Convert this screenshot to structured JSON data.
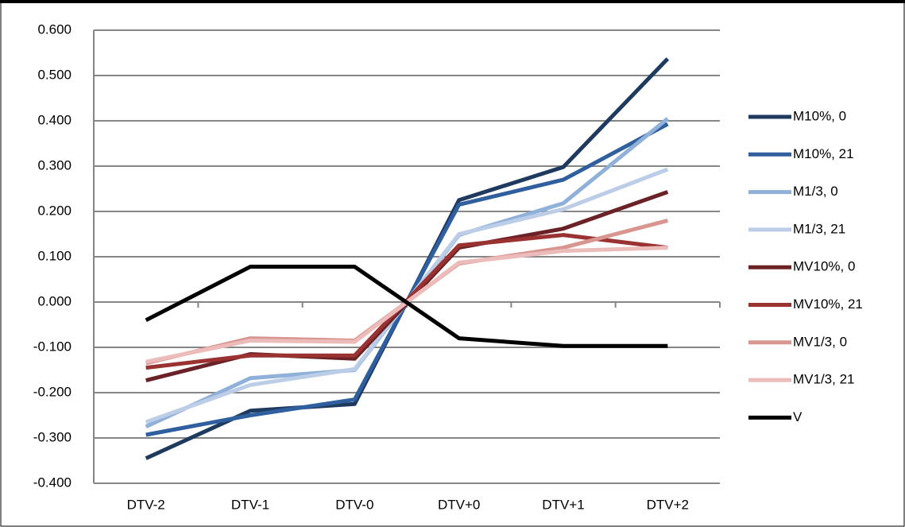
{
  "chart_data": {
    "type": "line",
    "categories": [
      "DTV-2",
      "DTV-1",
      "DTV-0",
      "DTV+0",
      "DTV+1",
      "DTV+2"
    ],
    "ylim": [
      -0.4,
      0.6
    ],
    "yticks": [
      {
        "value": -0.4,
        "label": "-0.400"
      },
      {
        "value": -0.3,
        "label": "-0.300"
      },
      {
        "value": -0.2,
        "label": "-0.200"
      },
      {
        "value": -0.1,
        "label": "-0.100"
      },
      {
        "value": 0,
        "label": "0.000"
      },
      {
        "value": 0.1,
        "label": "0.100"
      },
      {
        "value": 0.2,
        "label": "0.200"
      },
      {
        "value": 0.3,
        "label": "0.300"
      },
      {
        "value": 0.4,
        "label": "0.400"
      },
      {
        "value": 0.5,
        "label": "0.500"
      },
      {
        "value": 0.6,
        "label": "0.600"
      }
    ],
    "grid": true,
    "legend": "right",
    "series": [
      {
        "name": "M10%, 0",
        "color": "#1f3a5f",
        "values": [
          -0.345,
          -0.24,
          -0.225,
          0.225,
          0.298,
          0.537
        ]
      },
      {
        "name": "M10%, 21",
        "color": "#2f5f9e",
        "values": [
          -0.293,
          -0.25,
          -0.215,
          0.215,
          0.27,
          0.393
        ]
      },
      {
        "name": "M1/3, 0",
        "color": "#8fb0d8",
        "values": [
          -0.275,
          -0.168,
          -0.15,
          0.148,
          0.218,
          0.405
        ]
      },
      {
        "name": "M1/3, 21",
        "color": "#bccde8",
        "values": [
          -0.265,
          -0.183,
          -0.148,
          0.15,
          0.205,
          0.293
        ]
      },
      {
        "name": "MV10%, 0",
        "color": "#6b2226",
        "values": [
          -0.173,
          -0.115,
          -0.125,
          0.12,
          0.162,
          0.243
        ]
      },
      {
        "name": "MV10%, 21",
        "color": "#9b3232",
        "values": [
          -0.145,
          -0.118,
          -0.118,
          0.125,
          0.148,
          0.12
        ]
      },
      {
        "name": "MV1/3, 0",
        "color": "#d99590",
        "values": [
          -0.135,
          -0.08,
          -0.085,
          0.085,
          0.12,
          0.18
        ]
      },
      {
        "name": "MV1/3, 21",
        "color": "#ecbcbb",
        "values": [
          -0.132,
          -0.085,
          -0.088,
          0.087,
          0.113,
          0.12
        ]
      },
      {
        "name": "V",
        "color": "#000000",
        "values": [
          -0.04,
          0.078,
          0.078,
          -0.08,
          -0.097,
          -0.097
        ]
      }
    ]
  }
}
